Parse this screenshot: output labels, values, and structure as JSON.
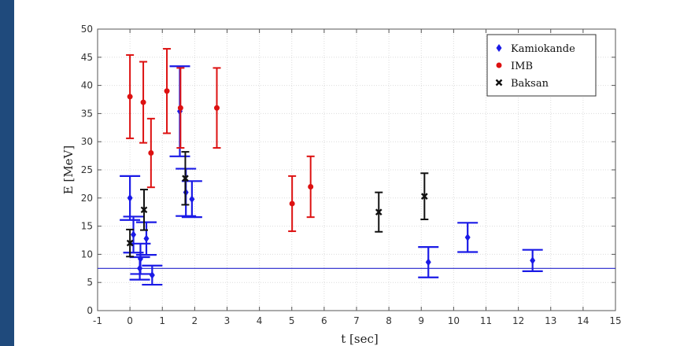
{
  "page": {
    "background": "#1f4a7c"
  },
  "chart_data": {
    "type": "scatter",
    "title": "",
    "xlabel": "t [sec]",
    "ylabel": "E [MeV]",
    "xlim": [
      -1,
      15
    ],
    "ylim": [
      0,
      50
    ],
    "xticks": [
      -1,
      0,
      1,
      2,
      3,
      4,
      5,
      6,
      7,
      8,
      9,
      10,
      11,
      12,
      13,
      14,
      15
    ],
    "yticks": [
      0,
      5,
      10,
      15,
      20,
      25,
      30,
      35,
      40,
      45,
      50
    ],
    "grid": true,
    "legend_position": "top-right",
    "reference_line": {
      "y": 7.5,
      "color": "#2222cc"
    },
    "series": [
      {
        "name": "Kamiokande",
        "marker": "diamond",
        "color": "#1a1ae6",
        "points": [
          {
            "x": 0.0,
            "y": 20.0,
            "err": 3.9
          },
          {
            "x": 0.107,
            "y": 13.5,
            "err": 3.2
          },
          {
            "x": 0.303,
            "y": 7.5,
            "err": 2.0
          },
          {
            "x": 0.324,
            "y": 9.2,
            "err": 2.7
          },
          {
            "x": 0.507,
            "y": 12.8,
            "err": 2.9
          },
          {
            "x": 0.686,
            "y": 6.3,
            "err": 1.7
          },
          {
            "x": 1.541,
            "y": 35.4,
            "err": 8.0
          },
          {
            "x": 1.728,
            "y": 21.0,
            "err": 4.2
          },
          {
            "x": 1.915,
            "y": 19.8,
            "err": 3.2
          },
          {
            "x": 9.219,
            "y": 8.6,
            "err": 2.7
          },
          {
            "x": 10.433,
            "y": 13.0,
            "err": 2.6
          },
          {
            "x": 12.439,
            "y": 8.9,
            "err": 1.9
          }
        ]
      },
      {
        "name": "IMB",
        "marker": "circle",
        "color": "#dd1111",
        "points": [
          {
            "x": 0.0,
            "y": 38.0,
            "err": 7.4
          },
          {
            "x": 0.412,
            "y": 37.0,
            "err": 7.2
          },
          {
            "x": 0.65,
            "y": 28.0,
            "err": 6.1
          },
          {
            "x": 1.141,
            "y": 39.0,
            "err": 7.5
          },
          {
            "x": 1.562,
            "y": 36.0,
            "err": 7.1
          },
          {
            "x": 2.684,
            "y": 36.0,
            "err": 7.1
          },
          {
            "x": 5.01,
            "y": 19.0,
            "err": 4.9
          },
          {
            "x": 5.582,
            "y": 22.0,
            "err": 5.4
          }
        ]
      },
      {
        "name": "Baksan",
        "marker": "x",
        "color": "#111111",
        "points": [
          {
            "x": 0.0,
            "y": 12.0,
            "err": 2.4
          },
          {
            "x": 0.435,
            "y": 17.9,
            "err": 3.6
          },
          {
            "x": 1.71,
            "y": 23.5,
            "err": 4.7
          },
          {
            "x": 7.687,
            "y": 17.5,
            "err": 3.5
          },
          {
            "x": 9.099,
            "y": 20.3,
            "err": 4.1
          }
        ]
      }
    ]
  }
}
